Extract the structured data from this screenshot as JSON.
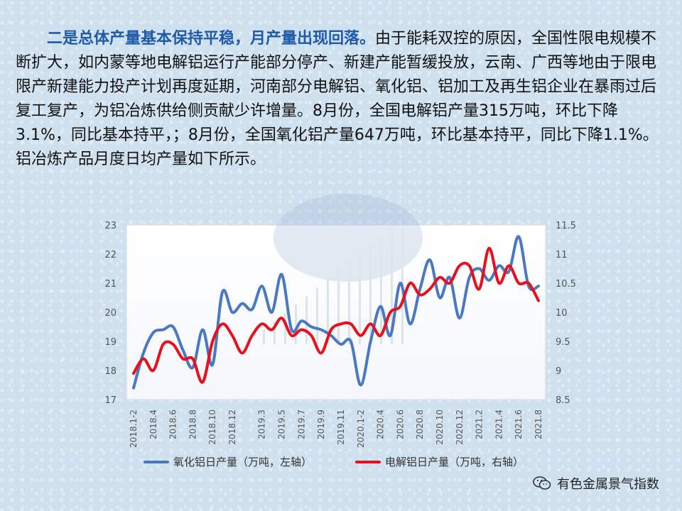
{
  "paragraph": {
    "heading": "二是总体产量基本保持平稳，月产量出现回落。",
    "body": "由于能耗双控的原因，全国性限电规模不断扩大，如内蒙等地电解铝运行产能部分停产、新建产能暂缓投放，云南、广西等地由于限电限产新建能力投产计划再度延期，河南部分电解铝、氧化铝、铝加工及再生铝企业在暴雨过后复工复产，为铝冶炼供给侧贡献少许增量。8月份，全国电解铝产量315万吨，环比下降3.1%，同比基本持平，；8月份，全国氧化铝产量647万吨，环比基本持平，同比下降1.1%。铝冶炼产品月度日均产量如下所示。"
  },
  "footer": {
    "source": "有色金属景气指数",
    "icon": "wechat-icon"
  },
  "colors": {
    "alumina": "#4a78c2",
    "electrolytic": "#e8101a",
    "axis_text": "#555555"
  },
  "chart_data": {
    "type": "line",
    "x_tick_labels": [
      "2018.1-2",
      "2018.4",
      "2018.6",
      "2018.8",
      "2018.10",
      "2018.12",
      "2019.3",
      "2019.5",
      "2019.7",
      "2019.9",
      "2019.11",
      "2020.1-2",
      "2020.4",
      "2020.6",
      "2020.8",
      "2020.10",
      "2020.12",
      "2021.2",
      "2021.4",
      "2021.6",
      "2021.8"
    ],
    "left_axis": {
      "ylim": [
        17,
        23
      ],
      "ticks": [
        17,
        18,
        19,
        20,
        21,
        22,
        23
      ]
    },
    "right_axis": {
      "ylim": [
        8.5,
        11.5
      ],
      "ticks": [
        8.5,
        9,
        9.5,
        10,
        10.5,
        11,
        11.5
      ]
    },
    "legend_position": "bottom",
    "series": [
      {
        "name": "氧化铝日产量（万吨，左轴）",
        "axis": "left",
        "x": [
          "2018.1-2",
          "2018.3",
          "2018.4",
          "2018.5",
          "2018.6",
          "2018.7",
          "2018.8",
          "2018.9",
          "2018.10",
          "2018.11",
          "2018.12",
          "2019.1",
          "2019.2",
          "2019.3",
          "2019.4",
          "2019.5",
          "2019.6",
          "2019.7",
          "2019.8",
          "2019.9",
          "2019.10",
          "2019.11",
          "2019.12",
          "2020.1-2",
          "2020.3",
          "2020.4",
          "2020.5",
          "2020.6",
          "2020.7",
          "2020.8",
          "2020.9",
          "2020.10",
          "2020.11",
          "2020.12",
          "2021.1",
          "2021.2",
          "2021.3",
          "2021.4",
          "2021.5",
          "2021.6",
          "2021.7",
          "2021.8"
        ],
        "values": [
          17.4,
          18.6,
          19.3,
          19.4,
          19.5,
          18.7,
          18.1,
          19.4,
          18.2,
          20.7,
          20.0,
          20.3,
          20.1,
          20.9,
          20.0,
          21.3,
          19.4,
          19.7,
          19.5,
          19.4,
          19.2,
          18.9,
          19.0,
          17.5,
          19.0,
          20.2,
          19.2,
          21.0,
          19.6,
          20.8,
          21.8,
          20.5,
          21.2,
          19.8,
          21.2,
          21.5,
          21.1,
          21.6,
          21.4,
          22.6,
          20.9,
          20.9
        ]
      },
      {
        "name": "电解铝日产量（万吨，右轴）",
        "axis": "right",
        "x": [
          "2018.1-2",
          "2018.3",
          "2018.4",
          "2018.5",
          "2018.6",
          "2018.7",
          "2018.8",
          "2018.9",
          "2018.10",
          "2018.11",
          "2018.12",
          "2019.1",
          "2019.2",
          "2019.3",
          "2019.4",
          "2019.5",
          "2019.6",
          "2019.7",
          "2019.8",
          "2019.9",
          "2019.10",
          "2019.11",
          "2019.12",
          "2020.1-2",
          "2020.3",
          "2020.4",
          "2020.5",
          "2020.6",
          "2020.7",
          "2020.8",
          "2020.9",
          "2020.10",
          "2020.11",
          "2020.12",
          "2021.1",
          "2021.2",
          "2021.3",
          "2021.4",
          "2021.5",
          "2021.6",
          "2021.7",
          "2021.8"
        ],
        "values": [
          8.95,
          9.2,
          9.0,
          9.45,
          9.45,
          9.2,
          9.2,
          8.8,
          9.5,
          9.8,
          9.6,
          9.3,
          9.6,
          9.8,
          9.7,
          9.9,
          9.6,
          9.7,
          9.6,
          9.3,
          9.7,
          9.8,
          9.8,
          9.6,
          9.8,
          9.6,
          10.0,
          10.1,
          10.5,
          10.3,
          10.4,
          10.6,
          10.5,
          10.8,
          10.8,
          10.4,
          11.1,
          10.5,
          10.8,
          10.5,
          10.5,
          10.2
        ]
      }
    ]
  }
}
